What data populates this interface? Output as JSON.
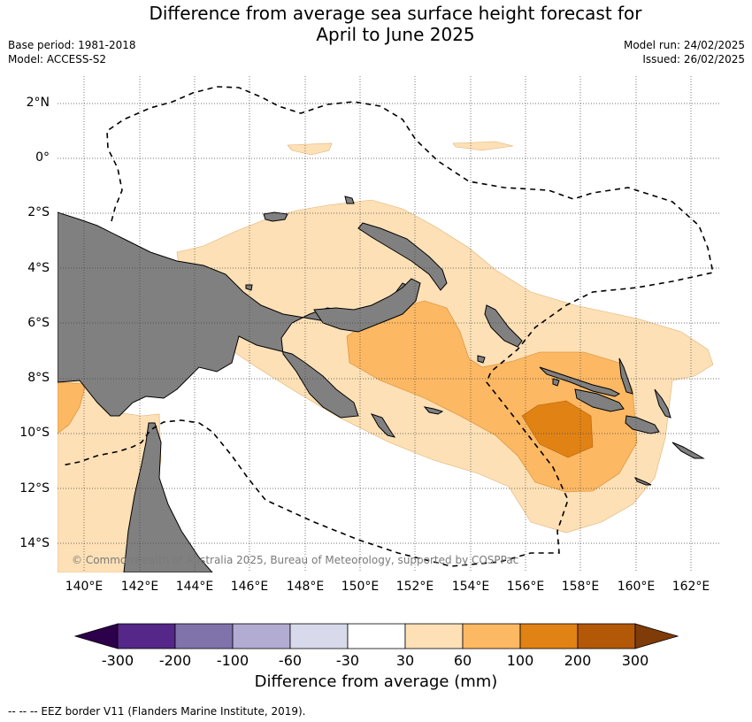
{
  "title_line1": "Difference from average sea surface height forecast for",
  "title_line2": "April to June 2025",
  "base_period": "Base period: 1981-2018",
  "model": "Model: ACCESS-S2",
  "model_run": "Model run: 24/02/2025",
  "issued": "Issued: 26/02/2025",
  "copyright": "© Commonwealth of Australia 2025, Bureau of Meteorology, supported by COSPPac",
  "lat_labels": [
    "2°N",
    "0°",
    "2°S",
    "4°S",
    "6°S",
    "8°S",
    "10°S",
    "12°S",
    "14°S"
  ],
  "lon_labels": [
    "140°E",
    "142°E",
    "144°E",
    "146°E",
    "148°E",
    "150°E",
    "152°E",
    "154°E",
    "156°E",
    "158°E",
    "160°E",
    "162°E"
  ],
  "colorbar": {
    "label": "Difference from average (mm)",
    "ticks": [
      "-300",
      "-200",
      "-100",
      "-60",
      "-30",
      "30",
      "60",
      "100",
      "200",
      "300"
    ],
    "colors": [
      "#2d004b",
      "#542788",
      "#8073ac",
      "#b2abd2",
      "#d8daeb",
      "#ffffff",
      "#fee0b6",
      "#fdb863",
      "#e08214",
      "#b35806",
      "#7f3b08"
    ]
  },
  "colors": {
    "land": "#808080",
    "band_30_60": "#fee0b6",
    "band_60_100": "#fdb863",
    "band_100_200": "#e08214"
  },
  "eez_note": "--  --  -- EEZ border V11 (Flanders Marine Institute, 2019)."
}
